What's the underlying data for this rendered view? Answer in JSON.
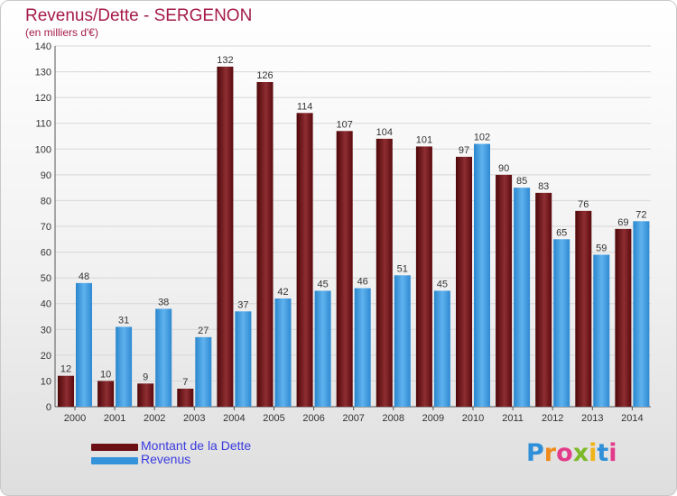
{
  "title": "Revenus/Dette - SERGENON",
  "subtitle": "(en milliers d'€)",
  "legend": {
    "debt_label": "Montant de la Dette",
    "revenue_label": "Revenus"
  },
  "logo": {
    "text": "Proxiti",
    "letter_colors": [
      "#2f8fd8",
      "#f08a1c",
      "#e23b8a",
      "#7cb928",
      "#f0b41a",
      "#2f8fd8",
      "#e23b8a"
    ]
  },
  "colors": {
    "title": "#a51a4a",
    "debt": "#6b0f14",
    "debt_light": "#9a3c3f",
    "revenue": "#2e8fd6",
    "revenue_light": "#6bb8f0",
    "axis_text": "#333333",
    "grid": "#d7d7d7"
  },
  "chart_data": {
    "type": "bar",
    "title": "Revenus/Dette - SERGENON",
    "ylabel": "(en milliers d'€)",
    "ylim": [
      0,
      140
    ],
    "yticks": [
      0,
      10,
      20,
      30,
      40,
      50,
      60,
      70,
      80,
      90,
      100,
      110,
      120,
      130,
      140
    ],
    "grid": true,
    "legend_position": "bottom-left",
    "categories": [
      "2000",
      "2001",
      "2002",
      "2003",
      "2004",
      "2005",
      "2006",
      "2007",
      "2008",
      "2009",
      "2010",
      "2011",
      "2012",
      "2013",
      "2014"
    ],
    "series": [
      {
        "name": "Montant de la Dette",
        "values": [
          12,
          10,
          9,
          7,
          132,
          126,
          114,
          107,
          104,
          101,
          97,
          90,
          83,
          76,
          69
        ]
      },
      {
        "name": "Revenus",
        "values": [
          48,
          31,
          38,
          27,
          37,
          42,
          45,
          46,
          51,
          45,
          102,
          85,
          65,
          59,
          72
        ]
      }
    ]
  }
}
